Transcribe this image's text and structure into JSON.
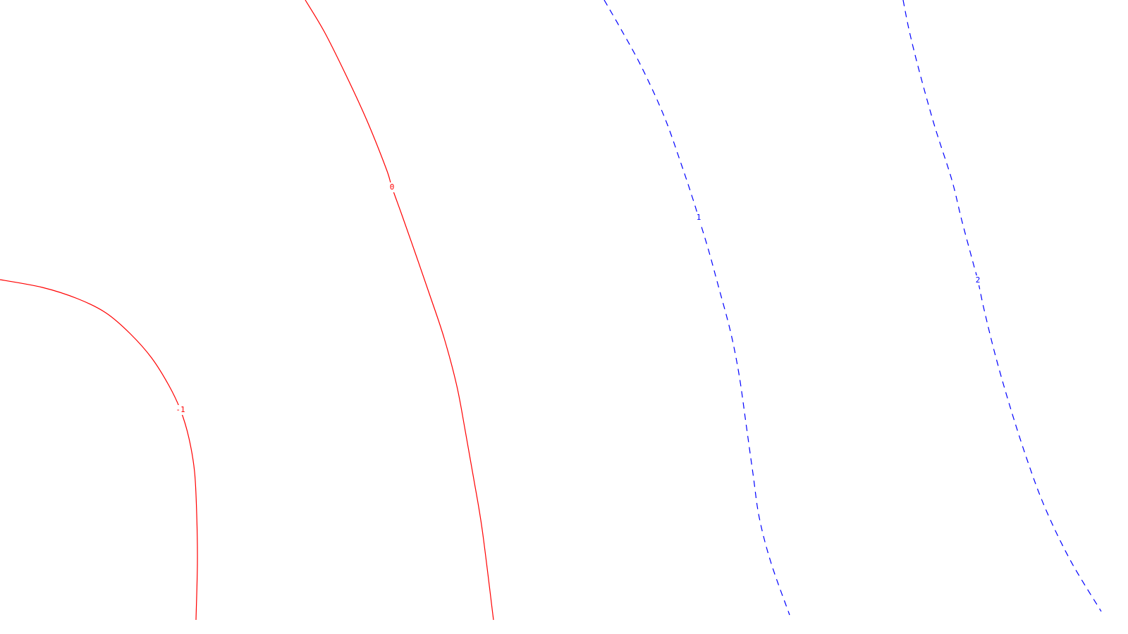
{
  "chart_data": {
    "type": "contour",
    "title": "",
    "xlabel": "",
    "ylabel": "",
    "grid": false,
    "levels": [
      {
        "name": "level--1",
        "label": "-1",
        "value": -1,
        "color": "#ff0000",
        "style": "solid",
        "points": [
          [
            0,
            397
          ],
          [
            60,
            408
          ],
          [
            110,
            424
          ],
          [
            150,
            444
          ],
          [
            185,
            474
          ],
          [
            215,
            508
          ],
          [
            240,
            548
          ],
          [
            256,
            582
          ],
          [
            268,
            622
          ],
          [
            276,
            670
          ],
          [
            279,
            730
          ],
          [
            280,
            800
          ],
          [
            278,
            880
          ]
        ]
      },
      {
        "name": "level-0",
        "label": "0",
        "value": 0,
        "color": "#ff0000",
        "style": "solid",
        "points": [
          [
            433,
            0
          ],
          [
            460,
            45
          ],
          [
            490,
            105
          ],
          [
            520,
            170
          ],
          [
            548,
            240
          ],
          [
            556,
            266
          ],
          [
            570,
            305
          ],
          [
            590,
            362
          ],
          [
            610,
            420
          ],
          [
            630,
            480
          ],
          [
            648,
            548
          ],
          [
            660,
            612
          ],
          [
            672,
            680
          ],
          [
            684,
            752
          ],
          [
            700,
            880
          ]
        ]
      },
      {
        "name": "level-1",
        "label": "1",
        "value": 1,
        "color": "#0000ff",
        "style": "dashed",
        "points": [
          [
            857,
            0
          ],
          [
            880,
            40
          ],
          [
            910,
            95
          ],
          [
            942,
            165
          ],
          [
            967,
            235
          ],
          [
            982,
            280
          ],
          [
            991,
            309
          ],
          [
            1005,
            355
          ],
          [
            1020,
            410
          ],
          [
            1036,
            470
          ],
          [
            1048,
            530
          ],
          [
            1058,
            600
          ],
          [
            1068,
            672
          ],
          [
            1077,
            735
          ],
          [
            1094,
            800
          ],
          [
            1120,
            873
          ]
        ]
      },
      {
        "name": "level-2",
        "label": "2",
        "value": 2,
        "color": "#0000ff",
        "style": "dashed",
        "points": [
          [
            1281,
            0
          ],
          [
            1290,
            45
          ],
          [
            1305,
            105
          ],
          [
            1326,
            180
          ],
          [
            1350,
            255
          ],
          [
            1364,
            312
          ],
          [
            1380,
            372
          ],
          [
            1387,
            398
          ],
          [
            1396,
            440
          ],
          [
            1412,
            505
          ],
          [
            1432,
            575
          ],
          [
            1456,
            650
          ],
          [
            1482,
            720
          ],
          [
            1518,
            795
          ],
          [
            1562,
            868
          ]
        ]
      }
    ],
    "label_positions": [
      {
        "level": "-1",
        "index": 7
      },
      {
        "level": "0",
        "index": 5
      },
      {
        "level": "1",
        "index": 6
      },
      {
        "level": "2",
        "index": 7
      }
    ]
  }
}
